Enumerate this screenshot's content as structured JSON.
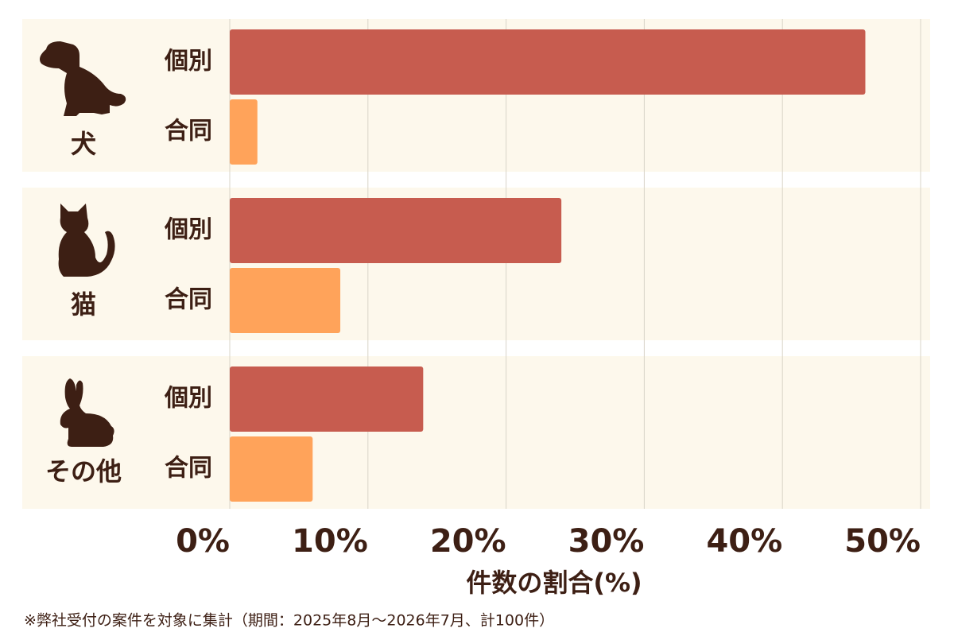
{
  "chart_data": {
    "type": "bar",
    "orientation": "horizontal",
    "categories": [
      "犬",
      "猫",
      "その他"
    ],
    "series": [
      {
        "name": "個別",
        "color": "#c75c4f",
        "values": [
          46,
          24,
          14
        ]
      },
      {
        "name": "合同",
        "color": "#ffa35a",
        "values": [
          2,
          8,
          6
        ]
      }
    ],
    "xlim": [
      0,
      50
    ],
    "xticks": [
      {
        "value": 0,
        "label": "0%"
      },
      {
        "value": 10,
        "label": "10%"
      },
      {
        "value": 20,
        "label": "20%"
      },
      {
        "value": 30,
        "label": "30%"
      },
      {
        "value": 40,
        "label": "40%"
      },
      {
        "value": 50,
        "label": "50%"
      }
    ],
    "xlabel": "件数の割合(%)",
    "grid": true,
    "note": "※弊社受付の案件を対象に集計（期間：2025年8月～2026年7月、計100件）"
  }
}
